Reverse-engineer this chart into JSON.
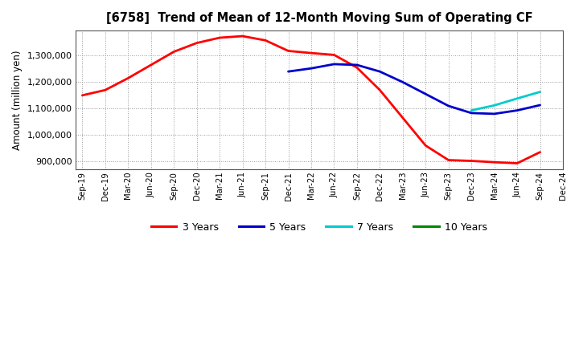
{
  "title": "[6758]  Trend of Mean of 12-Month Moving Sum of Operating CF",
  "ylabel": "Amount (million yen)",
  "background_color": "#ffffff",
  "plot_bg_color": "#ffffff",
  "grid_color": "#999999",
  "ylim": [
    870000,
    1395000
  ],
  "yticks": [
    900000,
    1000000,
    1100000,
    1200000,
    1300000
  ],
  "ytick_labels": [
    "900,000",
    "1,000,000",
    "1,100,000",
    "1,200,000",
    "1,300,000"
  ],
  "xtick_labels": [
    "Sep-19",
    "Dec-19",
    "Mar-20",
    "Jun-20",
    "Sep-20",
    "Dec-20",
    "Mar-21",
    "Jun-21",
    "Sep-21",
    "Dec-21",
    "Mar-22",
    "Jun-22",
    "Sep-22",
    "Dec-22",
    "Mar-23",
    "Jun-23",
    "Sep-23",
    "Dec-23",
    "Mar-24",
    "Jun-24",
    "Sep-24",
    "Dec-24"
  ],
  "series": {
    "3 Years": {
      "color": "#ff0000",
      "x": [
        0,
        1,
        2,
        3,
        4,
        5,
        6,
        7,
        8,
        9,
        10,
        11,
        12,
        13,
        14,
        15,
        16,
        17,
        18,
        19,
        20
      ],
      "y": [
        1150000,
        1170000,
        1215000,
        1265000,
        1315000,
        1348000,
        1368000,
        1374000,
        1358000,
        1318000,
        1310000,
        1303000,
        1255000,
        1170000,
        1065000,
        960000,
        905000,
        902000,
        897000,
        893000,
        935000
      ]
    },
    "5 Years": {
      "color": "#0000cc",
      "x": [
        9,
        10,
        11,
        12,
        13,
        14,
        15,
        16,
        17,
        18,
        19,
        20
      ],
      "y": [
        1240000,
        1252000,
        1268000,
        1265000,
        1240000,
        1200000,
        1155000,
        1110000,
        1083000,
        1080000,
        1093000,
        1113000
      ]
    },
    "7 Years": {
      "color": "#00cccc",
      "x": [
        17,
        18,
        19,
        20
      ],
      "y": [
        1093000,
        1112000,
        1138000,
        1163000
      ]
    },
    "10 Years": {
      "color": "#008800",
      "x": [],
      "y": []
    }
  },
  "legend_entries": [
    "3 Years",
    "5 Years",
    "7 Years",
    "10 Years"
  ],
  "legend_colors": [
    "#ff0000",
    "#0000cc",
    "#00cccc",
    "#008800"
  ]
}
